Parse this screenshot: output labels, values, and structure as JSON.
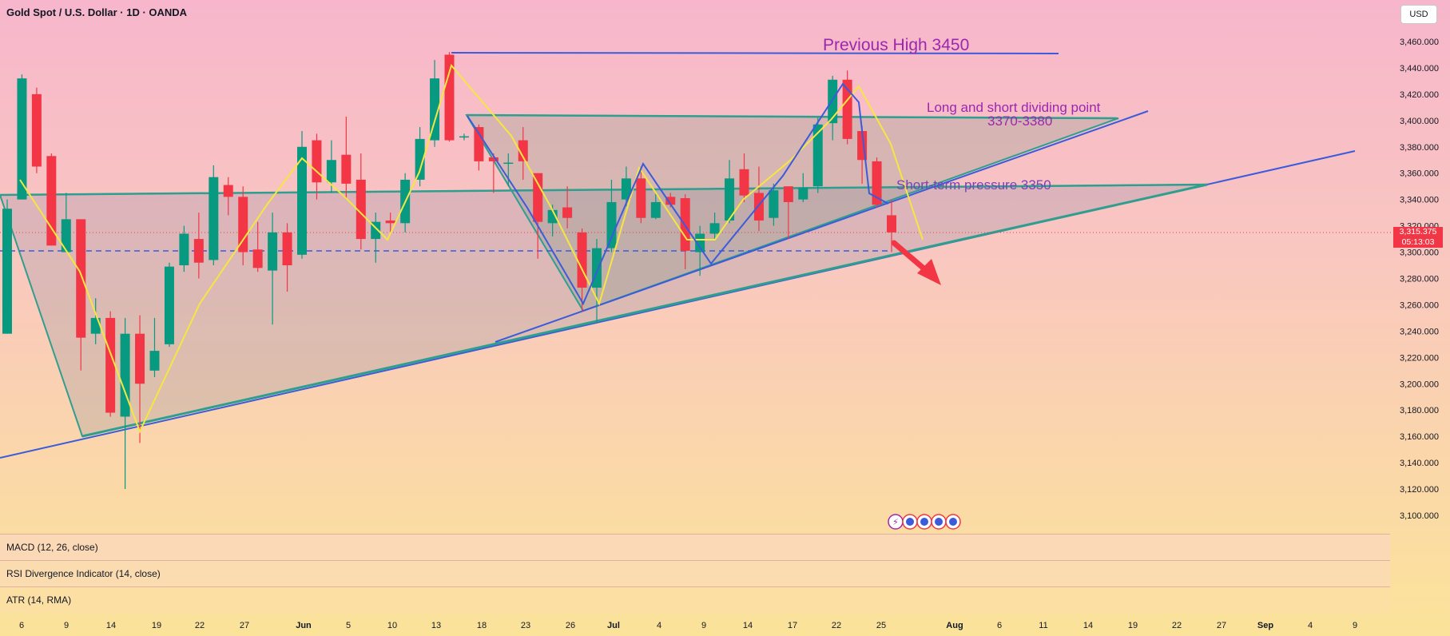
{
  "header": {
    "title": "Gold Spot / U.S. Dollar · 1D · OANDA",
    "currency": "USD"
  },
  "price_axis": {
    "labels": [
      "3,460.000",
      "3,440.000",
      "3,420.000",
      "3,400.000",
      "3,380.000",
      "3,360.000",
      "3,340.000",
      "3,320.000",
      "3,300.000",
      "3,280.000",
      "3,260.000",
      "3,240.000",
      "3,220.000",
      "3,200.000",
      "3,180.000",
      "3,160.000",
      "3,140.000",
      "3,120.000",
      "3,100.000"
    ],
    "current_price": "3,315.375",
    "countdown": "05:13:03"
  },
  "time_axis": {
    "labels": [
      "6",
      "9",
      "14",
      "19",
      "22",
      "27",
      "Jun",
      "5",
      "10",
      "13",
      "18",
      "23",
      "26",
      "Jul",
      "4",
      "9",
      "14",
      "17",
      "22",
      "25",
      "Aug",
      "6",
      "11",
      "14",
      "19",
      "22",
      "27",
      "Sep",
      "4",
      "9"
    ]
  },
  "annotations": {
    "previous_high": "Previous High 3450",
    "dividing_point": "Long and short dividing point",
    "dividing_range": "3370-3380",
    "short_term": "Short-term pressure 3350"
  },
  "indicators": [
    {
      "label": "MACD (12, 26, close)"
    },
    {
      "label": "RSI Divergence Indicator (14, close)"
    },
    {
      "label": "ATR (14, RMA)"
    }
  ],
  "colors": {
    "up": "#089981",
    "down": "#f23645",
    "trendline": "#3b5bdb",
    "zigzag": "#f5e642",
    "triangle_edge": "#2f9e8f"
  },
  "chart_data": {
    "type": "candlestick",
    "ylim": [
      3090,
      3470
    ],
    "candles": [
      {
        "date": "May 5",
        "o": 3238,
        "h": 3340,
        "l": 3238,
        "c": 3333
      },
      {
        "date": "May 6",
        "o": 3340,
        "h": 3435,
        "l": 3340,
        "c": 3432
      },
      {
        "date": "May 7",
        "o": 3420,
        "h": 3425,
        "l": 3360,
        "c": 3365
      },
      {
        "date": "May 8",
        "o": 3373,
        "h": 3375,
        "l": 3305,
        "c": 3305
      },
      {
        "date": "May 9",
        "o": 3300,
        "h": 3345,
        "l": 3300,
        "c": 3325
      },
      {
        "date": "May 12",
        "o": 3325,
        "h": 3325,
        "l": 3210,
        "c": 3235
      },
      {
        "date": "May 13",
        "o": 3238,
        "h": 3265,
        "l": 3230,
        "c": 3250
      },
      {
        "date": "May 14",
        "o": 3250,
        "h": 3255,
        "l": 3175,
        "c": 3178
      },
      {
        "date": "May 15",
        "o": 3175,
        "h": 3250,
        "l": 3120,
        "c": 3238
      },
      {
        "date": "May 16",
        "o": 3238,
        "h": 3252,
        "l": 3155,
        "c": 3200
      },
      {
        "date": "May 19",
        "o": 3210,
        "h": 3250,
        "l": 3205,
        "c": 3225
      },
      {
        "date": "May 20",
        "o": 3230,
        "h": 3292,
        "l": 3228,
        "c": 3289
      },
      {
        "date": "May 21",
        "o": 3290,
        "h": 3320,
        "l": 3285,
        "c": 3314
      },
      {
        "date": "May 22",
        "o": 3310,
        "h": 3330,
        "l": 3280,
        "c": 3292
      },
      {
        "date": "May 23",
        "o": 3294,
        "h": 3366,
        "l": 3290,
        "c": 3357
      },
      {
        "date": "May 26",
        "o": 3351,
        "h": 3357,
        "l": 3328,
        "c": 3342
      },
      {
        "date": "May 27",
        "o": 3342,
        "h": 3350,
        "l": 3290,
        "c": 3300
      },
      {
        "date": "May 28",
        "o": 3302,
        "h": 3323,
        "l": 3285,
        "c": 3288
      },
      {
        "date": "May 29",
        "o": 3286,
        "h": 3330,
        "l": 3245,
        "c": 3315
      },
      {
        "date": "May 30",
        "o": 3315,
        "h": 3322,
        "l": 3270,
        "c": 3290
      },
      {
        "date": "Jun 2",
        "o": 3298,
        "h": 3392,
        "l": 3295,
        "c": 3380
      },
      {
        "date": "Jun 3",
        "o": 3385,
        "h": 3390,
        "l": 3340,
        "c": 3353
      },
      {
        "date": "Jun 4",
        "o": 3353,
        "h": 3385,
        "l": 3345,
        "c": 3370
      },
      {
        "date": "Jun 5",
        "o": 3374,
        "h": 3403,
        "l": 3340,
        "c": 3352
      },
      {
        "date": "Jun 6",
        "o": 3355,
        "h": 3375,
        "l": 3302,
        "c": 3310
      },
      {
        "date": "Jun 9",
        "o": 3310,
        "h": 3330,
        "l": 3292,
        "c": 3323
      },
      {
        "date": "Jun 10",
        "o": 3324,
        "h": 3330,
        "l": 3315,
        "c": 3322
      },
      {
        "date": "Jun 11",
        "o": 3322,
        "h": 3360,
        "l": 3315,
        "c": 3355
      },
      {
        "date": "Jun 12",
        "o": 3355,
        "h": 3395,
        "l": 3350,
        "c": 3386
      },
      {
        "date": "Jun 13",
        "o": 3385,
        "h": 3446,
        "l": 3380,
        "c": 3432
      },
      {
        "date": "Jun 16",
        "o": 3450,
        "h": 3452,
        "l": 3384,
        "c": 3385
      },
      {
        "date": "Jun 17",
        "o": 3388,
        "h": 3390,
        "l": 3385,
        "c": 3388
      },
      {
        "date": "Jun 18",
        "o": 3395,
        "h": 3397,
        "l": 3362,
        "c": 3369
      },
      {
        "date": "Jun 19",
        "o": 3372,
        "h": 3375,
        "l": 3345,
        "c": 3369
      },
      {
        "date": "Jun 20",
        "o": 3368,
        "h": 3375,
        "l": 3350,
        "c": 3368
      },
      {
        "date": "Jun 23",
        "o": 3385,
        "h": 3395,
        "l": 3355,
        "c": 3369
      },
      {
        "date": "Jun 24",
        "o": 3360,
        "h": 3360,
        "l": 3295,
        "c": 3323
      },
      {
        "date": "Jun 25",
        "o": 3322,
        "h": 3336,
        "l": 3312,
        "c": 3332
      },
      {
        "date": "Jun 26",
        "o": 3334,
        "h": 3350,
        "l": 3318,
        "c": 3326
      },
      {
        "date": "Jun 27",
        "o": 3315,
        "h": 3318,
        "l": 3255,
        "c": 3273
      },
      {
        "date": "Jun 30",
        "o": 3273,
        "h": 3310,
        "l": 3247,
        "c": 3303
      },
      {
        "date": "Jul 1",
        "o": 3303,
        "h": 3355,
        "l": 3300,
        "c": 3338
      },
      {
        "date": "Jul 2",
        "o": 3340,
        "h": 3365,
        "l": 3335,
        "c": 3356
      },
      {
        "date": "Jul 3",
        "o": 3356,
        "h": 3365,
        "l": 3322,
        "c": 3326
      },
      {
        "date": "Jul 4",
        "o": 3326,
        "h": 3345,
        "l": 3325,
        "c": 3338
      },
      {
        "date": "Jul 7",
        "o": 3342,
        "h": 3345,
        "l": 3334,
        "c": 3336
      },
      {
        "date": "Jul 8",
        "o": 3341,
        "h": 3344,
        "l": 3287,
        "c": 3301
      },
      {
        "date": "Jul 9",
        "o": 3300,
        "h": 3320,
        "l": 3282,
        "c": 3314
      },
      {
        "date": "Jul 10",
        "o": 3314,
        "h": 3330,
        "l": 3310,
        "c": 3322
      },
      {
        "date": "Jul 11",
        "o": 3324,
        "h": 3370,
        "l": 3322,
        "c": 3356
      },
      {
        "date": "Jul 14",
        "o": 3363,
        "h": 3375,
        "l": 3338,
        "c": 3343
      },
      {
        "date": "Jul 15",
        "o": 3345,
        "h": 3365,
        "l": 3316,
        "c": 3324
      },
      {
        "date": "Jul 16",
        "o": 3326,
        "h": 3352,
        "l": 3320,
        "c": 3347
      },
      {
        "date": "Jul 17",
        "o": 3350,
        "h": 3350,
        "l": 3310,
        "c": 3338
      },
      {
        "date": "Jul 18",
        "o": 3340,
        "h": 3360,
        "l": 3338,
        "c": 3349
      },
      {
        "date": "Jul 21",
        "o": 3350,
        "h": 3402,
        "l": 3345,
        "c": 3397
      },
      {
        "date": "Jul 22",
        "o": 3398,
        "h": 3434,
        "l": 3385,
        "c": 3431
      },
      {
        "date": "Jul 23",
        "o": 3431,
        "h": 3438,
        "l": 3382,
        "c": 3386
      },
      {
        "date": "Jul 24",
        "o": 3392,
        "h": 3396,
        "l": 3352,
        "c": 3370
      },
      {
        "date": "Jul 25",
        "o": 3369,
        "h": 3372,
        "l": 3334,
        "c": 3336
      },
      {
        "date": "Jul 28",
        "o": 3328,
        "h": 3340,
        "l": 3300,
        "c": 3315
      }
    ]
  }
}
